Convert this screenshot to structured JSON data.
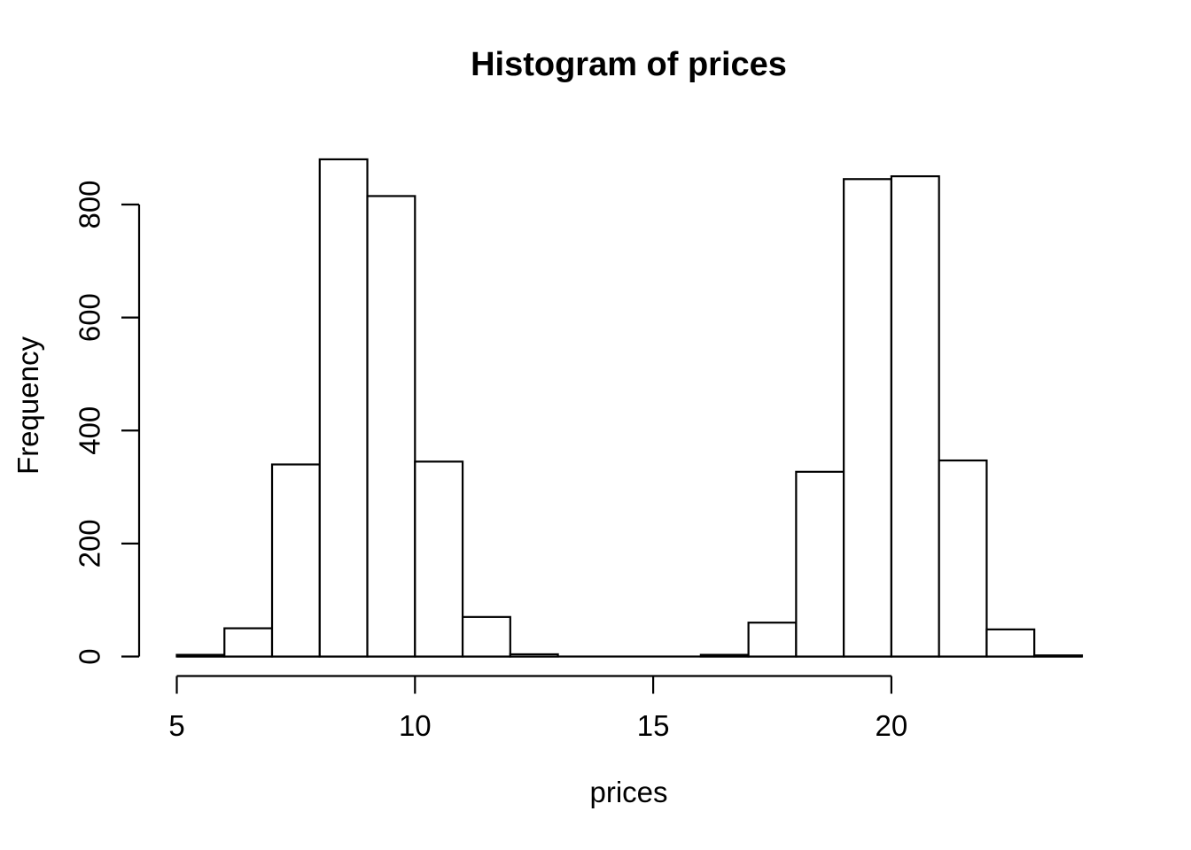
{
  "figure": {
    "background": "#ffffff",
    "foreground": "#000000"
  },
  "chart_data": {
    "type": "bar",
    "subtype": "histogram",
    "title": "Histogram of prices",
    "xlabel": "prices",
    "ylabel": "Frequency",
    "bin_start": 5,
    "bin_width": 1,
    "bin_edges": [
      5,
      6,
      7,
      8,
      9,
      10,
      11,
      12,
      13,
      14,
      15,
      16,
      17,
      18,
      19,
      20,
      21,
      22,
      23,
      24
    ],
    "counts": [
      3,
      50,
      340,
      880,
      815,
      345,
      70,
      4,
      0,
      0,
      0,
      3,
      60,
      327,
      845,
      850,
      347,
      48,
      2
    ],
    "x_ticks": [
      5,
      10,
      15,
      20
    ],
    "y_ticks": [
      0,
      200,
      400,
      600,
      800
    ],
    "xlim": [
      5,
      24
    ],
    "ylim": [
      0,
      880
    ],
    "grid": false,
    "legend": false,
    "bar_fill": "#ffffff",
    "bar_border": "#000000",
    "axis_color": "#000000"
  }
}
